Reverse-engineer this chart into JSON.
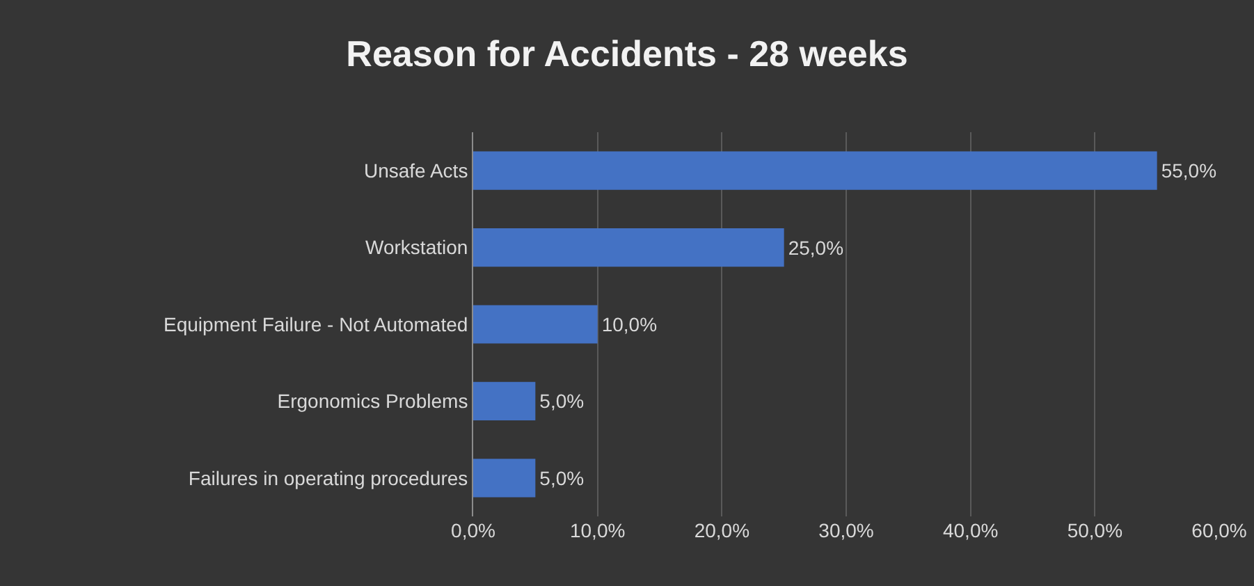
{
  "chart_data": {
    "type": "bar",
    "orientation": "horizontal",
    "title": "Reason for Accidents - 28 weeks",
    "categories": [
      "Unsafe Acts",
      "Workstation",
      "Equipment Failure - Not Automated",
      "Ergonomics Problems",
      "Failures in operating procedures"
    ],
    "values": [
      55,
      25,
      10,
      5,
      5
    ],
    "value_labels": [
      "55,0%",
      "25,0%",
      "10,0%",
      "5,0%",
      "5,0%"
    ],
    "color": "#4472c4",
    "xlim": [
      0,
      60
    ],
    "xticks": [
      {
        "value": 0,
        "label": "0,0%"
      },
      {
        "value": 10,
        "label": "10,0%"
      },
      {
        "value": 20,
        "label": "20,0%"
      },
      {
        "value": 30,
        "label": "30,0%"
      },
      {
        "value": 40,
        "label": "40,0%"
      },
      {
        "value": 50,
        "label": "50,0%"
      },
      {
        "value": 60,
        "label": "60,0%"
      }
    ],
    "grid": "x"
  }
}
